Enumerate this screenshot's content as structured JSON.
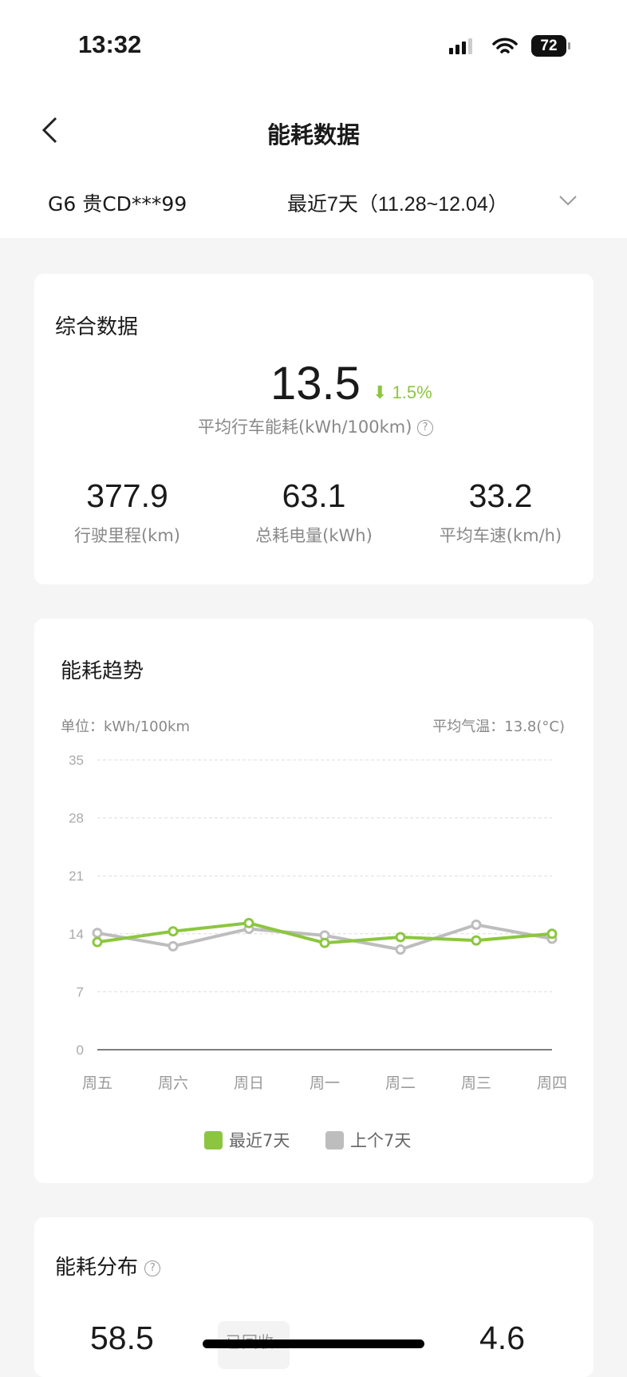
{
  "status_bar": {
    "time": "13:32",
    "battery": "72"
  },
  "header": {
    "title": "能耗数据",
    "vehicle": "G6 贵CD***99",
    "range": "最近7天（11.28~12.04）"
  },
  "summary": {
    "title": "综合数据",
    "avg_consumption": "13.5",
    "change": "1.5%",
    "avg_label": "平均行车能耗(kWh/100km)",
    "stats": [
      {
        "value": "377.9",
        "label": "行驶里程(km)"
      },
      {
        "value": "63.1",
        "label": "总耗电量(kWh)"
      },
      {
        "value": "33.2",
        "label": "平均车速(km/h)"
      }
    ]
  },
  "trend": {
    "title": "能耗趋势",
    "unit": "单位：kWh/100km",
    "temp": "平均气温：13.8(°C)"
  },
  "chart_data": {
    "type": "line",
    "categories": [
      "周五",
      "周六",
      "周日",
      "周一",
      "周二",
      "周三",
      "周四"
    ],
    "yticks": [
      "0",
      "7",
      "14",
      "21",
      "28",
      "35"
    ],
    "ylim": [
      0,
      35
    ],
    "grid": true,
    "legend": "bottom",
    "series": [
      {
        "name": "最近7天",
        "color": "#8cc63f",
        "values": [
          13.0,
          14.3,
          15.3,
          12.9,
          13.6,
          13.2,
          14.0
        ]
      },
      {
        "name": "上个7天",
        "color": "#bdbdbd",
        "values": [
          14.1,
          12.5,
          14.6,
          13.8,
          12.1,
          15.1,
          13.4
        ]
      }
    ]
  },
  "distribution": {
    "title": "能耗分布",
    "left_value": "58.5",
    "right_value": "4.6",
    "tag": "已回收"
  }
}
